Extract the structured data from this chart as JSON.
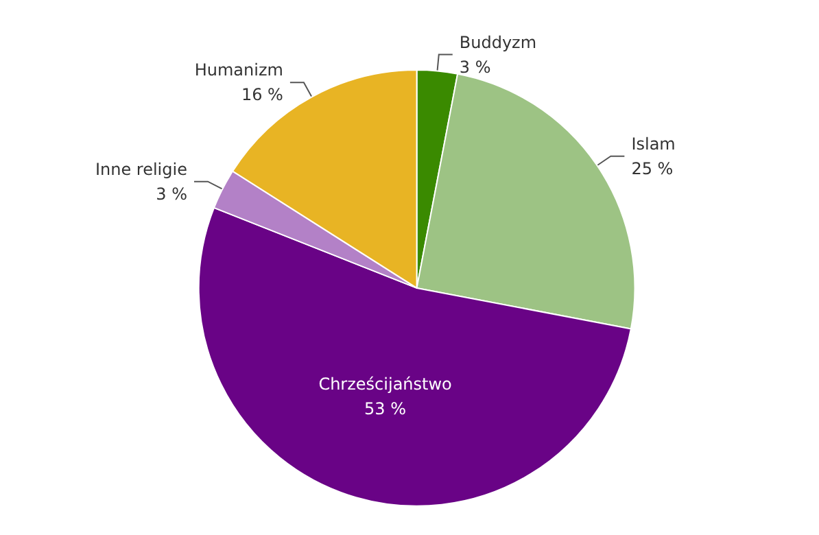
{
  "chart_data": {
    "type": "pie",
    "categories": [
      "Buddyzm",
      "Islam",
      "Chrześcijaństwo",
      "Inne religie",
      "Humanizm"
    ],
    "values": [
      3,
      25,
      53,
      3,
      16
    ],
    "value_labels": [
      "3 %",
      "25 %",
      "53 %",
      "3 %",
      "16 %"
    ],
    "colors": [
      "#3a8a00",
      "#9dc384",
      "#690386",
      "#b381c7",
      "#e8b424"
    ],
    "legend": false
  }
}
